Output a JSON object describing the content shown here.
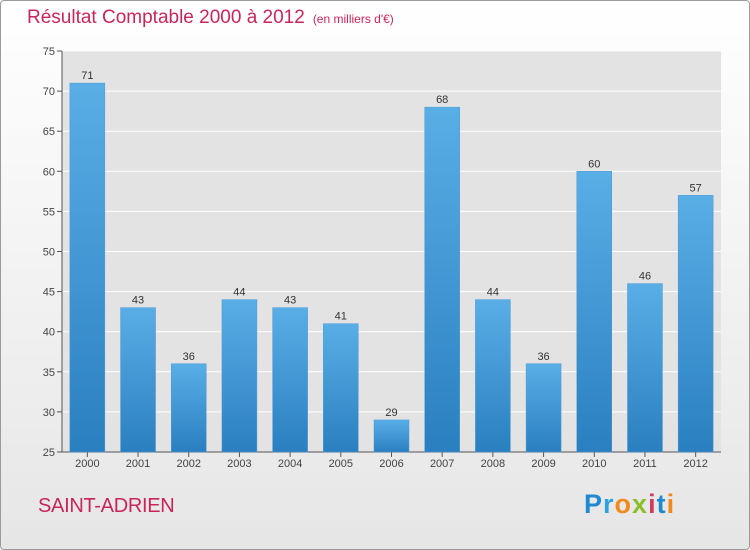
{
  "header": {
    "title": "Résultat Comptable 2000 à 2012",
    "unit": "(en milliers d'€)"
  },
  "commune": "SAINT-ADRIEN",
  "logo": {
    "letters": [
      "P",
      "r",
      "o",
      "x",
      "i",
      "t",
      "i"
    ]
  },
  "colors": {
    "title": "#c8265a",
    "bar_top": "#5aaee6",
    "bar_bottom": "#2a7fc0"
  },
  "chart_data": {
    "type": "bar",
    "title": "Résultat Comptable 2000 à 2012",
    "xlabel": "",
    "ylabel": "",
    "ylim": [
      25,
      75
    ],
    "yticks": [
      25,
      30,
      35,
      40,
      45,
      50,
      55,
      60,
      65,
      70,
      75
    ],
    "grid": true,
    "categories": [
      "2000",
      "2001",
      "2002",
      "2003",
      "2004",
      "2005",
      "2006",
      "2007",
      "2008",
      "2009",
      "2010",
      "2011",
      "2012"
    ],
    "values": [
      71,
      43,
      36,
      44,
      43,
      41,
      29,
      68,
      44,
      36,
      60,
      46,
      57
    ]
  }
}
